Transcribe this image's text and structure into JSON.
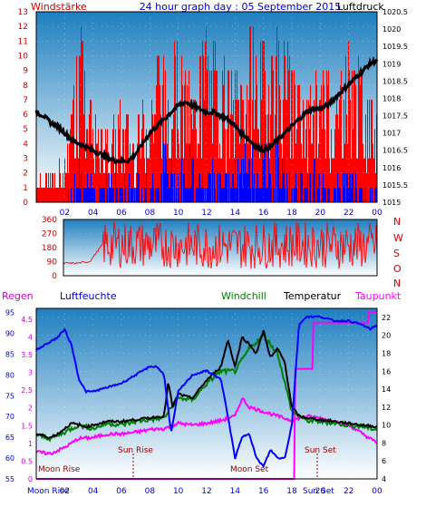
{
  "header": {
    "left_label": "Windstärke",
    "title": "24 hour graph day : 05 September 2015",
    "right_label": "Luftdruck"
  },
  "compass": [
    "N",
    "W",
    "S",
    "O",
    "N"
  ],
  "bottom_header": {
    "regen": "Regen",
    "luftfeuchte": "Luftfeuchte",
    "windchill": "Windchill",
    "temperatur": "Temperatur",
    "taupunkt": "Taupunkt"
  },
  "astro": {
    "moon_rise": "Moon Rise",
    "moon_set": "Moon Set",
    "sun_rise": "Sun Rise",
    "sun_set": "Sun Set",
    "moon_rise_bottom": "Moon Rise",
    "sun_set_bottom": "Sun Set"
  },
  "colors": {
    "wind": "#ff0000",
    "gust_base": "#0000ff",
    "pressure": "#000000",
    "direction": "#ff0000",
    "humidity": "#0000ff",
    "temperature": "#000000",
    "windchill": "#008000",
    "dewpoint": "#ff00ff",
    "rain": "#cc00cc",
    "axis_left": "#cc0000",
    "axis_blue": "#0000cc",
    "bg_top": "#1f7fbf",
    "bg_bottom": "#ffffff"
  },
  "chart_data": [
    {
      "type": "bar",
      "name": "wind-panel",
      "x_ticks": [
        "02",
        "04",
        "06",
        "08",
        "10",
        "12",
        "14",
        "16",
        "18",
        "20",
        "22",
        "00"
      ],
      "y_left_ticks": [
        "0",
        "1",
        "2",
        "3",
        "4",
        "5",
        "6",
        "7",
        "8",
        "9",
        "10",
        "11",
        "12",
        "13"
      ],
      "y_right_ticks": [
        "1015",
        "1015.5",
        "1016",
        "1016.5",
        "1017",
        "1017.5",
        "1018",
        "1018.5",
        "1019",
        "1019.5",
        "1020",
        "1020.5"
      ],
      "ylim_left": [
        0,
        13
      ],
      "ylim_right": [
        1015,
        1020.5
      ],
      "xlim": [
        0,
        24
      ],
      "pressure": {
        "x": [
          0,
          0.5,
          1,
          1.5,
          2,
          2.5,
          3,
          3.5,
          4,
          4.5,
          5,
          5.5,
          6,
          6.5,
          7,
          7.5,
          8,
          8.5,
          9,
          9.5,
          10,
          10.5,
          11,
          11.5,
          12,
          12.5,
          13,
          13.5,
          14,
          14.5,
          15,
          15.5,
          16,
          16.5,
          17,
          17.5,
          18,
          18.5,
          19,
          19.5,
          20,
          20.5,
          21,
          21.5,
          22,
          22.5,
          23,
          23.5,
          24
        ],
        "values": [
          1017.6,
          1017.5,
          1017.3,
          1017.2,
          1017.0,
          1016.8,
          1016.7,
          1016.6,
          1016.5,
          1016.4,
          1016.3,
          1016.2,
          1016.2,
          1016.2,
          1016.4,
          1016.7,
          1017.0,
          1017.2,
          1017.4,
          1017.6,
          1017.8,
          1017.9,
          1017.8,
          1017.7,
          1017.6,
          1017.6,
          1017.5,
          1017.4,
          1017.2,
          1017.0,
          1016.8,
          1016.6,
          1016.5,
          1016.6,
          1016.8,
          1017.0,
          1017.2,
          1017.4,
          1017.6,
          1017.7,
          1017.7,
          1017.8,
          1018.0,
          1018.2,
          1018.4,
          1018.6,
          1018.8,
          1019.0,
          1019.1
        ]
      },
      "wind_max": {
        "x": [
          0,
          1,
          2,
          2.7,
          3,
          3.5,
          4,
          5,
          6,
          7,
          8,
          9,
          10,
          11,
          12,
          13,
          14,
          15,
          16,
          16.5,
          17,
          17.5,
          18,
          19,
          20,
          21,
          22,
          23,
          24
        ],
        "values": [
          2,
          2,
          3,
          8,
          13,
          9,
          6,
          5,
          7,
          5,
          9,
          10,
          11,
          8,
          12,
          10,
          9,
          12,
          11,
          13,
          13,
          12,
          9,
          7,
          10,
          8,
          11,
          9,
          6
        ]
      },
      "gust_base": {
        "x": [
          0,
          1,
          2,
          3,
          4,
          5,
          6,
          7,
          8,
          9,
          10,
          11,
          12,
          13,
          14,
          15,
          16,
          17,
          18,
          19,
          20,
          21,
          22,
          23,
          24
        ],
        "values": [
          0,
          0,
          0,
          2,
          1,
          2,
          1,
          2,
          1,
          3,
          2,
          3,
          2,
          2,
          2,
          3,
          3,
          3,
          1,
          2,
          2,
          1,
          2,
          1,
          1
        ]
      }
    },
    {
      "type": "bar",
      "name": "wind-direction-panel",
      "x_ticks": [
        "02",
        "04",
        "06",
        "08",
        "10",
        "12",
        "14",
        "16",
        "18",
        "20",
        "22",
        "00"
      ],
      "y_ticks": [
        "0",
        "90",
        "180",
        "270",
        "360"
      ],
      "ylim": [
        0,
        360
      ],
      "xlim": [
        0,
        24
      ],
      "direction_mean": {
        "x": [
          0,
          1,
          2,
          3,
          6,
          12,
          18,
          24
        ],
        "values": [
          80,
          80,
          90,
          200,
          200,
          190,
          200,
          190
        ]
      }
    },
    {
      "type": "line",
      "name": "climate-panel",
      "x_ticks": [
        "02",
        "04",
        "06",
        "08",
        "10",
        "12",
        "14",
        "16",
        "18",
        "20",
        "22",
        "00"
      ],
      "y_rain_ticks": [
        "0",
        "0.5",
        "1",
        "1.5",
        "2",
        "2.5",
        "3",
        "3.5",
        "4",
        "4.5"
      ],
      "y_hum_ticks": [
        "55",
        "60",
        "65",
        "70",
        "75",
        "80",
        "85",
        "90",
        "95"
      ],
      "y_temp_ticks": [
        "4",
        "6",
        "8",
        "10",
        "12",
        "14",
        "16",
        "18",
        "20",
        "22"
      ],
      "ylim_hum": [
        55,
        96
      ],
      "ylim_temp": [
        4,
        23
      ],
      "ylim_rain": [
        0,
        4.8
      ],
      "xlim": [
        0,
        24
      ],
      "humidity": {
        "x": [
          0,
          0.5,
          1,
          1.5,
          2,
          2.5,
          3,
          3.5,
          4,
          5,
          6,
          7,
          8,
          8.5,
          9,
          9.5,
          10,
          11,
          12,
          12.5,
          13,
          13.5,
          14,
          14.5,
          15,
          15.5,
          16,
          16.5,
          17,
          17.5,
          18,
          18.5,
          19,
          20,
          21,
          22,
          23,
          23.5,
          24
        ],
        "values": [
          86,
          87,
          88,
          89,
          91,
          87,
          79,
          76,
          76,
          77,
          78,
          80,
          82,
          82,
          80,
          66,
          76,
          80,
          81,
          80,
          79,
          70,
          60,
          65,
          66,
          60,
          58,
          62,
          60,
          60,
          68,
          92,
          94,
          94,
          93,
          93,
          92,
          91,
          92
        ]
      },
      "temperature": {
        "x": [
          0,
          0.5,
          1,
          1.5,
          2,
          2.5,
          3,
          3.5,
          4,
          5,
          6,
          7,
          8,
          9,
          9.3,
          9.6,
          10,
          10.5,
          11,
          12,
          13,
          13.5,
          14,
          14.5,
          15,
          15.5,
          16,
          16.5,
          17,
          17.5,
          18,
          18.5,
          19,
          20,
          21,
          22,
          23,
          24
        ],
        "values": [
          9.0,
          8.8,
          8.6,
          9.0,
          9.6,
          10.2,
          10.0,
          9.8,
          10.0,
          10.4,
          10.4,
          10.6,
          10.8,
          11.0,
          14.8,
          12.0,
          13.5,
          13.2,
          13.0,
          15.0,
          16.5,
          19.5,
          16.5,
          19.8,
          19.0,
          18.0,
          20.5,
          17.5,
          18.5,
          17.0,
          12.0,
          11.0,
          10.8,
          10.6,
          10.4,
          10.2,
          10.0,
          9.8
        ]
      },
      "windchill": {
        "x": [
          0,
          1,
          2,
          3,
          4,
          5,
          6,
          7,
          8,
          9,
          10,
          11,
          12,
          13,
          14,
          15,
          16,
          17,
          18,
          19,
          20,
          21,
          22,
          23,
          24
        ],
        "values": [
          8.9,
          8.5,
          9.2,
          10.0,
          9.6,
          10.2,
          10.0,
          10.4,
          10.6,
          10.8,
          13.0,
          12.8,
          14.6,
          16.0,
          16.0,
          18.5,
          20.0,
          18.0,
          11.5,
          10.5,
          10.4,
          10.2,
          10.0,
          9.8,
          9.5
        ]
      },
      "dewpoint": {
        "x": [
          0,
          1,
          2,
          3,
          4,
          5,
          6,
          7,
          8,
          9,
          10,
          11,
          12,
          13,
          14,
          14.5,
          15,
          16,
          17,
          18,
          19,
          20,
          21,
          22,
          23,
          24
        ],
        "values": [
          7.0,
          6.8,
          7.5,
          8.5,
          8.6,
          9.0,
          9.0,
          9.2,
          9.5,
          9.6,
          10.2,
          10.0,
          10.2,
          10.5,
          11.0,
          13.0,
          12.0,
          11.5,
          11.0,
          10.5,
          11.0,
          10.8,
          10.4,
          10.0,
          9.0,
          8.0
        ]
      },
      "rain": {
        "x": [
          0,
          18,
          18.2,
          19,
          19.5,
          23.2,
          23.4,
          24
        ],
        "values": [
          0,
          0,
          3.1,
          3.1,
          4.4,
          4.4,
          4.7,
          4.7
        ]
      }
    }
  ]
}
